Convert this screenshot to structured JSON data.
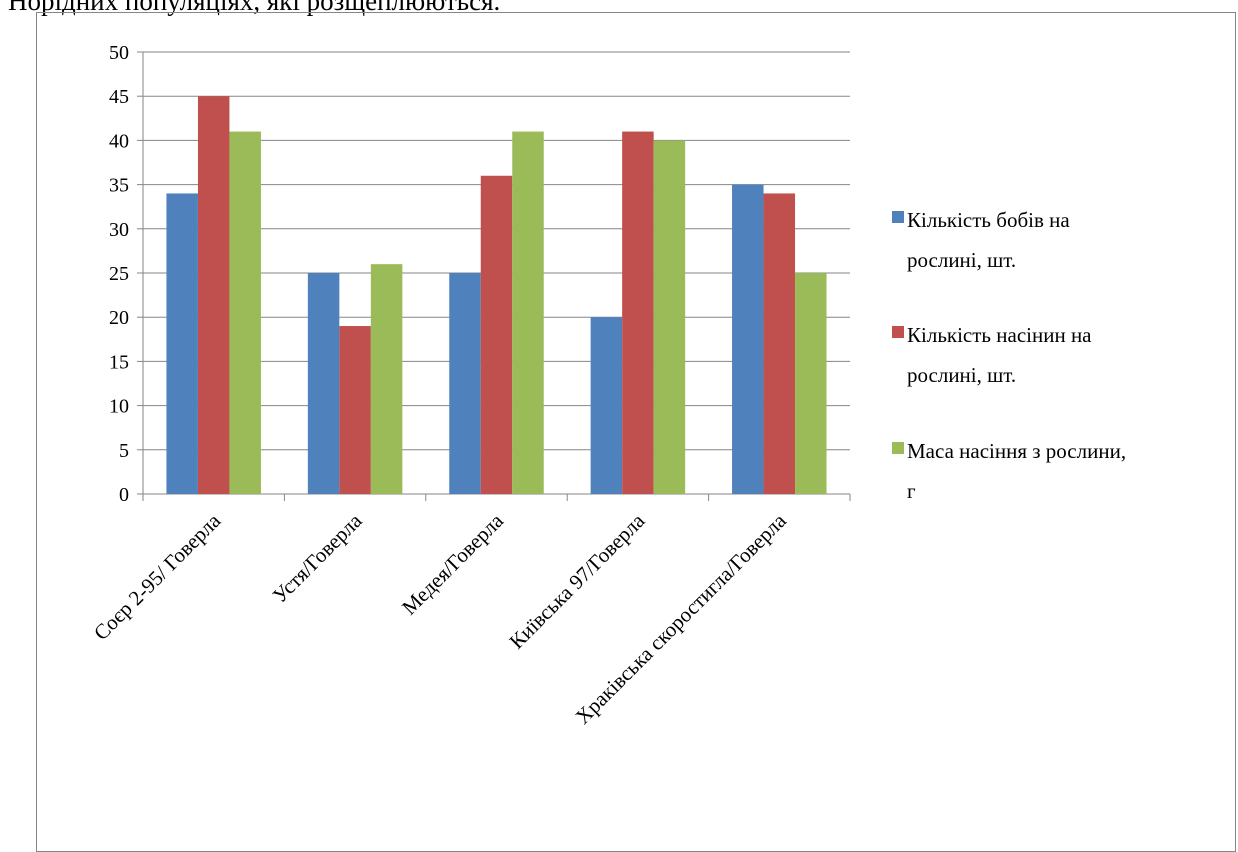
{
  "page": {
    "top_text": "Норідних популяціях, які розщеплюються."
  },
  "chart_data": {
    "type": "bar",
    "categories": [
      "Соєр 2-95/ Говерла",
      "Устя/Говерла",
      "Медея/Говерла",
      "Київська 97/Говерла",
      "Хракiвська скоростигла/Говерла"
    ],
    "series": [
      {
        "name": "Кількість бобів на рослині, шт.",
        "color": "#4f81bd",
        "values": [
          34,
          25,
          25,
          20,
          35
        ]
      },
      {
        "name": "Кількість насінин на рослині, шт.",
        "color": "#c0504d",
        "values": [
          45,
          19,
          36,
          41,
          34
        ]
      },
      {
        "name": "Маса насіння з рослини, г",
        "color": "#9bbb59",
        "values": [
          41,
          26,
          41,
          40,
          25
        ]
      }
    ],
    "legend_lines": [
      [
        "Кількість бобів на",
        "рослині, шт."
      ],
      [
        "Кількість насінин на",
        "рослині, шт."
      ],
      [
        "Маса насіння з рослини,",
        "г"
      ]
    ],
    "ylim": [
      0,
      50
    ],
    "yticks": [
      "0",
      "5",
      "10",
      "15",
      "20",
      "25",
      "30",
      "35",
      "40",
      "45",
      "50"
    ],
    "grid": true,
    "legend_position": "right"
  }
}
